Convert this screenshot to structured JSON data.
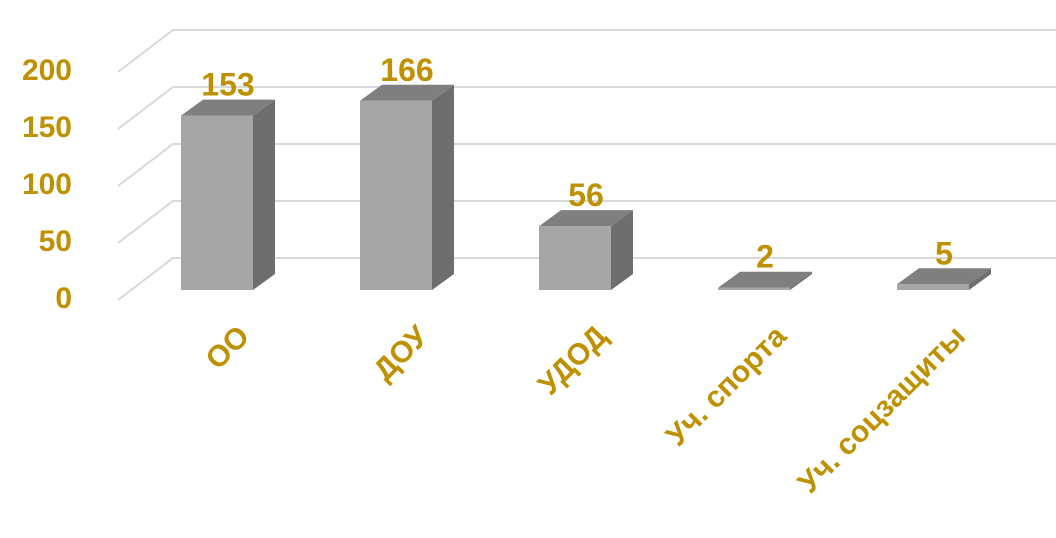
{
  "chart_data": {
    "type": "bar",
    "style": "3d-column",
    "title": "",
    "xlabel": "",
    "ylabel": "",
    "categories": [
      "ОО",
      "ДОУ",
      "УДОД",
      "Уч. спорта",
      "Уч. соцзащиты"
    ],
    "values": [
      153,
      166,
      56,
      2,
      5
    ],
    "value_labels": [
      "153",
      "166",
      "56",
      "2",
      "5"
    ],
    "y_ticks": [
      "0",
      "50",
      "100",
      "150",
      "200"
    ],
    "ylim": [
      0,
      220
    ],
    "grid": true,
    "legend": "none",
    "colors": {
      "bar_front": "#a6a6a6",
      "bar_side": "#6e6e6e",
      "bar_top": "#7f7f7f",
      "text": "#bf9000",
      "grid": "#d9d9d9"
    }
  }
}
